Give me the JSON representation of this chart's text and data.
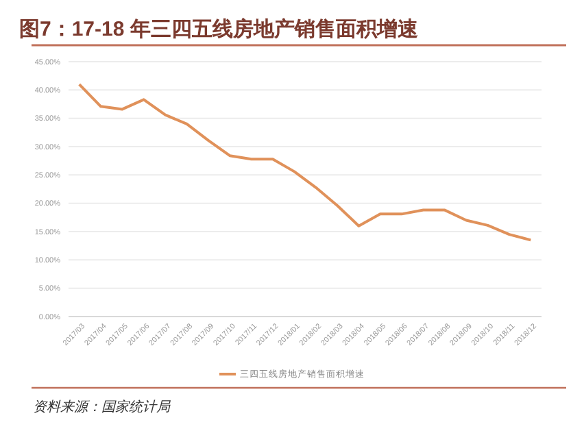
{
  "chart_data": {
    "type": "line",
    "title": "图7：17-18 年三四五线房地产销售面积增速",
    "categories": [
      "2017/03",
      "2017/04",
      "2017/05",
      "2017/06",
      "2017/07",
      "2017/08",
      "2017/09",
      "2017/10",
      "2017/11",
      "2017/12",
      "2018/01",
      "2018/02",
      "2018/03",
      "2018/04",
      "2018/05",
      "2018/06",
      "2018/07",
      "2018/08",
      "2018/09",
      "2018/10",
      "2018/11",
      "2018/12"
    ],
    "series": [
      {
        "name": "三四五线房地产销售面积增速",
        "color": "#e0915a",
        "values": [
          41.0,
          37.1,
          36.6,
          38.3,
          35.6,
          34.0,
          31.1,
          28.4,
          27.8,
          27.8,
          25.6,
          22.8,
          19.6,
          16.0,
          18.1,
          18.1,
          18.8,
          18.8,
          17.0,
          16.1,
          14.5,
          13.5
        ]
      }
    ],
    "ylim": [
      0,
      45
    ],
    "yticks": [
      {
        "value": 0,
        "label": "0.00%"
      },
      {
        "value": 5,
        "label": "5.00%"
      },
      {
        "value": 10,
        "label": "10.00%"
      },
      {
        "value": 15,
        "label": "15.00%"
      },
      {
        "value": 20,
        "label": "20.00%"
      },
      {
        "value": 25,
        "label": "25.00%"
      },
      {
        "value": 30,
        "label": "30.00%"
      },
      {
        "value": 35,
        "label": "35.00%"
      },
      {
        "value": 40,
        "label": "40.00%"
      },
      {
        "value": 45,
        "label": "45.00%"
      }
    ],
    "grid": "y",
    "legend": "bottom",
    "marker": "none",
    "line_style": "solid",
    "annotations": [
      "资料来源：国家统计局"
    ]
  }
}
